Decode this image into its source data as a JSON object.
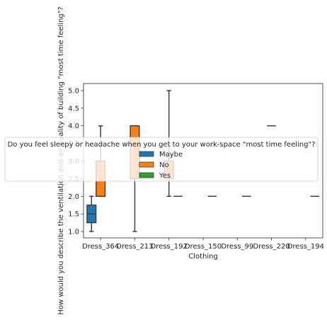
{
  "chart_data": {
    "type": "box",
    "xlabel": "Clothing",
    "ylabel": "How would you describe the ventilation and air quality of building  \"most time feeling\"?",
    "categories": [
      "Dress_364",
      "Dress_213",
      "Dress_192",
      "Dress_150",
      "Dress_99",
      "Dress_220",
      "Dress_194"
    ],
    "ylim": [
      0.82,
      5.2
    ],
    "yticks": [
      "1.0",
      "1.5",
      "2.0",
      "2.5",
      "3.0",
      "3.5",
      "4.0",
      "4.5",
      "5.0"
    ],
    "legend": {
      "title": "Do you feel sleepy or headache when you get to your work-space \"most time feeling\"?",
      "placement": "center",
      "entries": [
        {
          "name": "Maybe",
          "color": "#1f77b4"
        },
        {
          "name": "No",
          "color": "#ff7f0e"
        },
        {
          "name": "Yes",
          "color": "#2ca02c"
        }
      ]
    },
    "series": [
      {
        "name": "Maybe",
        "color": "#1f77b4",
        "boxes": [
          {
            "category": "Dress_364",
            "min": 1.0,
            "q1": 1.25,
            "median": 1.5,
            "q3": 1.75,
            "max": 2.0
          }
        ]
      },
      {
        "name": "No",
        "color": "#ff7f0e",
        "boxes": [
          {
            "category": "Dress_364",
            "min": 2.0,
            "q1": 2.0,
            "median": 2.0,
            "q3": 3.0,
            "max": 4.0
          },
          {
            "category": "Dress_213",
            "min": 1.0,
            "q1": 2.5,
            "median": 4.0,
            "q3": 4.0,
            "max": 4.0
          },
          {
            "category": "Dress_192",
            "min": 2.0,
            "q1": 2.5,
            "median": 3.0,
            "q3": 3.0,
            "max": 5.0
          },
          {
            "category": "Dress_220",
            "min": 4.0,
            "q1": 4.0,
            "median": 4.0,
            "q3": 4.0,
            "max": 4.0
          }
        ]
      },
      {
        "name": "Yes",
        "color": "#2ca02c",
        "boxes": [
          {
            "category": "Dress_192",
            "min": 2.0,
            "q1": 2.0,
            "median": 2.0,
            "q3": 2.0,
            "max": 2.0
          },
          {
            "category": "Dress_150",
            "min": 2.0,
            "q1": 2.0,
            "median": 2.0,
            "q3": 2.0,
            "max": 2.0
          },
          {
            "category": "Dress_99",
            "min": 2.0,
            "q1": 2.0,
            "median": 2.0,
            "q3": 2.0,
            "max": 2.0
          },
          {
            "category": "Dress_194",
            "min": 2.0,
            "q1": 2.0,
            "median": 2.0,
            "q3": 2.0,
            "max": 2.0
          }
        ]
      }
    ]
  }
}
